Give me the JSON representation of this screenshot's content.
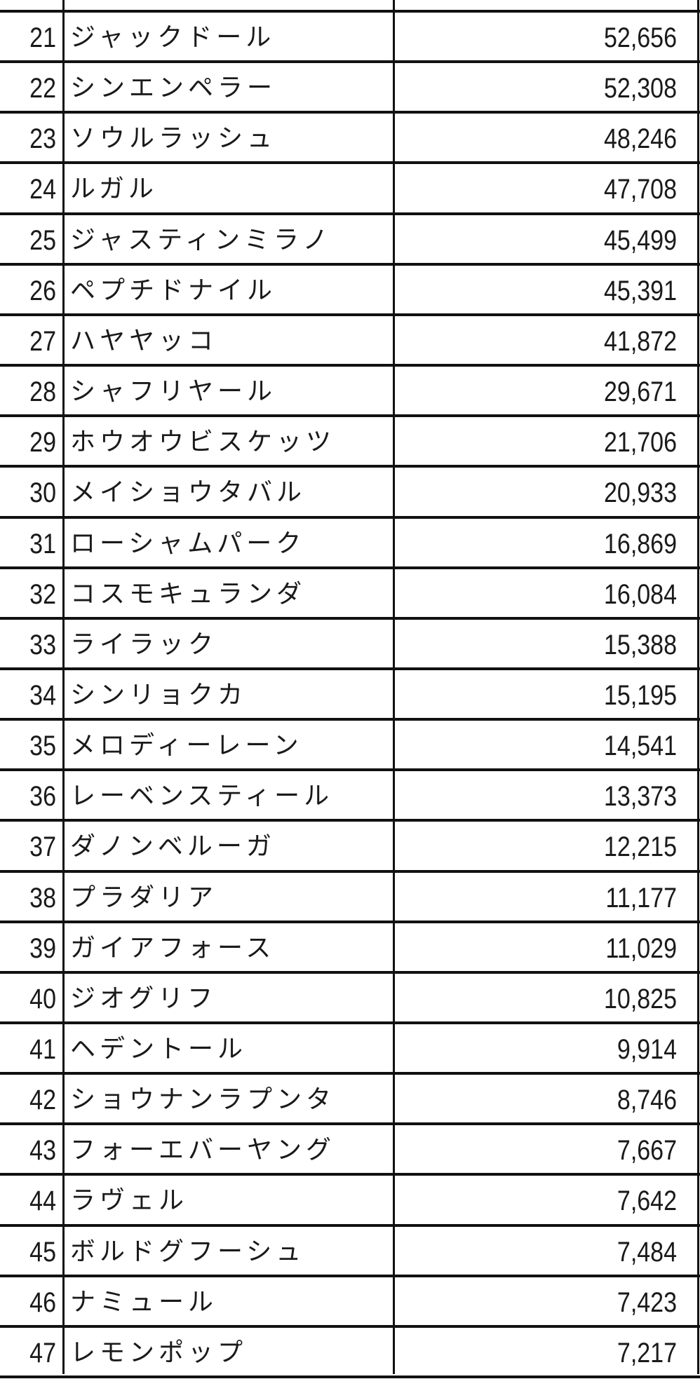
{
  "table": {
    "rows": [
      {
        "rank": "21",
        "name": "ジャックドール",
        "value": "52,656"
      },
      {
        "rank": "22",
        "name": "シンエンペラー",
        "value": "52,308"
      },
      {
        "rank": "23",
        "name": "ソウルラッシュ",
        "value": "48,246"
      },
      {
        "rank": "24",
        "name": "ルガル",
        "value": "47,708"
      },
      {
        "rank": "25",
        "name": "ジャスティンミラノ",
        "value": "45,499"
      },
      {
        "rank": "26",
        "name": "ペプチドナイル",
        "value": "45,391"
      },
      {
        "rank": "27",
        "name": "ハヤヤッコ",
        "value": "41,872"
      },
      {
        "rank": "28",
        "name": "シャフリヤール",
        "value": "29,671"
      },
      {
        "rank": "29",
        "name": "ホウオウビスケッツ",
        "value": "21,706"
      },
      {
        "rank": "30",
        "name": "メイショウタバル",
        "value": "20,933"
      },
      {
        "rank": "31",
        "name": "ローシャムパーク",
        "value": "16,869"
      },
      {
        "rank": "32",
        "name": "コスモキュランダ",
        "value": "16,084"
      },
      {
        "rank": "33",
        "name": "ライラック",
        "value": "15,388"
      },
      {
        "rank": "34",
        "name": "シンリョクカ",
        "value": "15,195"
      },
      {
        "rank": "35",
        "name": "メロディーレーン",
        "value": "14,541"
      },
      {
        "rank": "36",
        "name": "レーベンスティール",
        "value": "13,373"
      },
      {
        "rank": "37",
        "name": "ダノンベルーガ",
        "value": "12,215"
      },
      {
        "rank": "38",
        "name": "プラダリア",
        "value": "11,177"
      },
      {
        "rank": "39",
        "name": "ガイアフォース",
        "value": "11,029"
      },
      {
        "rank": "40",
        "name": "ジオグリフ",
        "value": "10,825"
      },
      {
        "rank": "41",
        "name": "ヘデントール",
        "value": "9,914"
      },
      {
        "rank": "42",
        "name": "ショウナンラプンタ",
        "value": "8,746"
      },
      {
        "rank": "43",
        "name": "フォーエバーヤング",
        "value": "7,667"
      },
      {
        "rank": "44",
        "name": "ラヴェル",
        "value": "7,642"
      },
      {
        "rank": "45",
        "name": "ボルドグフーシュ",
        "value": "7,484"
      },
      {
        "rank": "46",
        "name": "ナミュール",
        "value": "7,423"
      },
      {
        "rank": "47",
        "name": "レモンポップ",
        "value": "7,217"
      }
    ]
  }
}
